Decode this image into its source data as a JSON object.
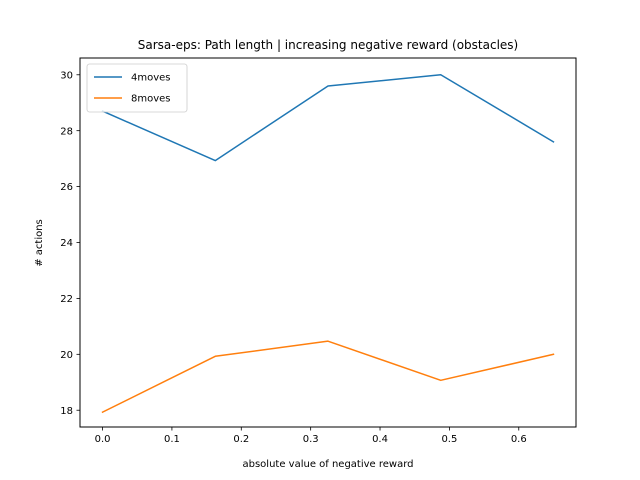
{
  "chart_data": {
    "type": "line",
    "title": "Sarsa-eps: Path length | increasing negative reward (obstacles)",
    "xlabel": "absolute value of negative reward",
    "ylabel": "# actions",
    "x": [
      0.0,
      0.1625,
      0.325,
      0.4875,
      0.65
    ],
    "xlim": [
      -0.0325,
      0.6825
    ],
    "ylim": [
      17.4,
      30.6
    ],
    "xticks": [
      0.0,
      0.1,
      0.2,
      0.3,
      0.4,
      0.5,
      0.6
    ],
    "xtick_labels": [
      "0.0",
      "0.1",
      "0.2",
      "0.3",
      "0.4",
      "0.5",
      "0.6"
    ],
    "yticks": [
      18,
      20,
      22,
      24,
      26,
      28,
      30
    ],
    "ytick_labels": [
      "18",
      "20",
      "22",
      "24",
      "26",
      "28",
      "30"
    ],
    "grid": false,
    "legend_position": "top-left",
    "series": [
      {
        "name": "4moves",
        "color": "#1f77b4",
        "values": [
          28.7,
          26.93,
          29.6,
          30.0,
          27.6
        ]
      },
      {
        "name": "8moves",
        "color": "#ff7f0e",
        "values": [
          17.93,
          19.93,
          20.47,
          19.07,
          20.0
        ]
      }
    ]
  }
}
